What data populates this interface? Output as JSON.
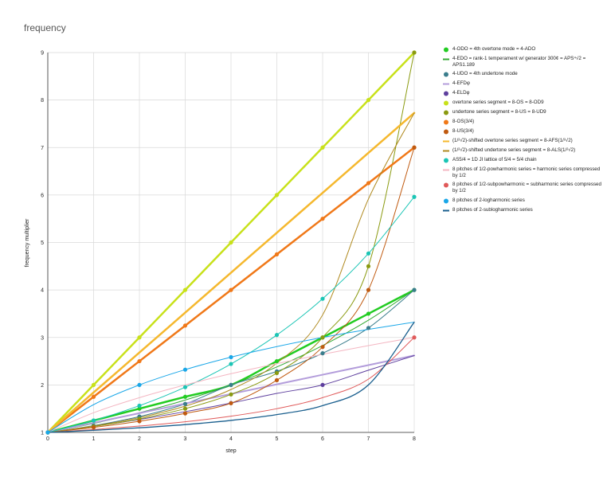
{
  "chart_data": {
    "type": "line",
    "title": "frequency",
    "xlabel": "step",
    "ylabel": "frequency multiplier",
    "x": [
      0,
      1,
      2,
      3,
      4,
      5,
      6,
      7,
      8
    ],
    "xlim": [
      0,
      8
    ],
    "ylim": [
      1,
      9
    ],
    "xticks": [
      "0",
      "1",
      "2",
      "3",
      "4",
      "5",
      "6",
      "7",
      "8"
    ],
    "yticks": [
      "1",
      "2",
      "3",
      "4",
      "5",
      "6",
      "7",
      "8",
      "9"
    ],
    "grid": true,
    "legend_position": "right",
    "series": [
      {
        "name": "4-ODO = 4th overtone mode = 4-ADO",
        "color": "#22cc22",
        "marker": "circle",
        "width": 2.5,
        "values": [
          1,
          1.25,
          1.5,
          1.75,
          2,
          2.5,
          3,
          3.5,
          4
        ],
        "marker_idx": [
          0,
          1,
          2,
          3,
          4,
          5,
          6,
          7,
          8
        ]
      },
      {
        "name": "4-EDO = rank-1 temperament w/ generator 300¢ = APS⁴√2 = APS1.189",
        "color": "#33aa33",
        "marker": "none",
        "width": 1,
        "values": [
          1,
          1.1892,
          1.4142,
          1.6818,
          2,
          2.3784,
          2.8284,
          3.3636,
          4
        ]
      },
      {
        "name": "4-UDO = 4th undertone mode",
        "color": "#3a7d8c",
        "marker": "circle",
        "width": 1,
        "values": [
          1,
          1.1429,
          1.3333,
          1.6,
          2,
          2.2857,
          2.6667,
          3.2,
          4
        ],
        "marker_idx": [
          0,
          1,
          2,
          3,
          4,
          5,
          6,
          7,
          8
        ]
      },
      {
        "name": "4-EFDφ",
        "color": "#b39ddb",
        "marker": "none",
        "width": 2,
        "values": [
          1,
          1.2025,
          1.405,
          1.6075,
          1.81,
          2.0125,
          2.215,
          2.4175,
          2.62
        ]
      },
      {
        "name": "4-ELDφ",
        "color": "#5e3f9e",
        "marker": "circle",
        "width": 1,
        "values": [
          1,
          1.128,
          1.273,
          1.437,
          1.618,
          1.821,
          2,
          2.31,
          2.618
        ],
        "marker_idx": [
          4,
          6
        ]
      },
      {
        "name": "overtone series segment = 8-OS = 8-OD9",
        "color": "#c8e11a",
        "marker": "circle",
        "width": 2.5,
        "values": [
          1,
          2,
          3,
          4,
          5,
          6,
          7,
          8,
          9
        ],
        "marker_idx": [
          0,
          1,
          2,
          3,
          4,
          5,
          6,
          7,
          8
        ]
      },
      {
        "name": "undertone series segment = 8-US = 8-UD9",
        "color": "#8a9a10",
        "marker": "circle",
        "width": 1,
        "values": [
          1,
          1.125,
          1.2857,
          1.5,
          1.8,
          2.25,
          3,
          4.5,
          9
        ],
        "marker_idx": [
          0,
          1,
          2,
          3,
          4,
          5,
          6,
          7,
          8
        ]
      },
      {
        "name": "8-OS(3/4)",
        "color": "#f07818",
        "marker": "circle",
        "width": 2.5,
        "values": [
          1,
          1.75,
          2.5,
          3.25,
          4,
          4.75,
          5.5,
          6.25,
          7
        ],
        "marker_idx": [
          0,
          1,
          2,
          3,
          4,
          5,
          6,
          7,
          8
        ]
      },
      {
        "name": "8-US(3/4)",
        "color": "#c05a10",
        "marker": "circle",
        "width": 1,
        "values": [
          1,
          1.1053,
          1.2353,
          1.4,
          1.6154,
          2.1,
          2.8,
          4,
          7
        ],
        "marker_idx": [
          0,
          1,
          2,
          3,
          4,
          5,
          6,
          7,
          8
        ]
      },
      {
        "name": "(1/²√2)-shifted overtone series segment = 8-AFS(1/²√2)",
        "color": "#f5b82e",
        "marker": "none",
        "width": 2.5,
        "values": [
          1,
          1.841,
          2.682,
          3.523,
          4.364,
          5.205,
          6.046,
          6.887,
          7.728
        ]
      },
      {
        "name": "(1/²√2)-shifted undertone series segment = 8-ALS(1/²√2)",
        "color": "#b08a20",
        "marker": "none",
        "width": 1,
        "values": [
          1,
          1.1347,
          1.3112,
          1.5528,
          1.9037,
          2.4599,
          3.4749,
          5.9144,
          7.728
        ]
      },
      {
        "name": "AS5/4 = 1D JI lattice of 5/4 = 5/4 chain",
        "color": "#1bc5b5",
        "marker": "circle",
        "width": 1,
        "values": [
          1,
          1.25,
          1.5625,
          1.9531,
          2.4414,
          3.0518,
          3.8147,
          4.7684,
          5.9605
        ],
        "marker_idx": [
          0,
          1,
          2,
          3,
          4,
          5,
          6,
          7,
          8
        ]
      },
      {
        "name": "8 pitches of 1/2-powharmonic series = harmonic series compressed by 1/2",
        "color": "#f4b6c2",
        "marker": "none",
        "width": 1,
        "values": [
          1,
          1.4142,
          1.7321,
          2,
          2.2361,
          2.4495,
          2.6458,
          2.8284,
          3
        ]
      },
      {
        "name": "8 pitches of 1/2-subpowharmonic = subharmonic series compressed by 1/2",
        "color": "#e05a5a",
        "marker": "circle",
        "width": 1,
        "values": [
          1,
          1.0607,
          1.1339,
          1.2247,
          1.3416,
          1.5,
          1.7321,
          2.1213,
          3
        ],
        "marker_idx": [
          8
        ]
      },
      {
        "name": "8 pitches of 2-logharmonic series",
        "color": "#1aa7e8",
        "marker": "circle",
        "width": 1,
        "values": [
          1,
          1.585,
          2,
          2.3219,
          2.585,
          2.8074,
          3,
          3.1699,
          3.3219
        ],
        "marker_idx": [
          0,
          2,
          3,
          4
        ]
      },
      {
        "name": "8 pitches of 2-sublogharmonic series",
        "color": "#1a5f8e",
        "marker": "none",
        "width": 1.3,
        "values": [
          1,
          1.0438,
          1.0973,
          1.1645,
          1.2527,
          1.3755,
          1.5637,
          2.0,
          3.3219
        ]
      }
    ]
  }
}
